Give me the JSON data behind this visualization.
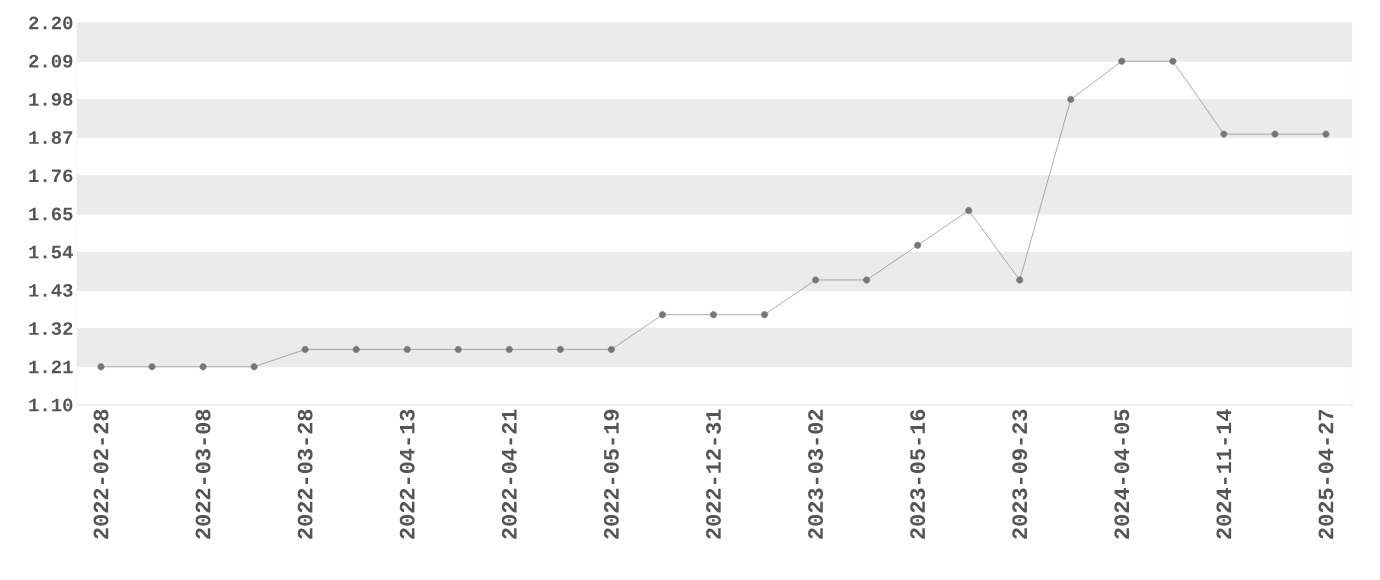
{
  "chart_data": {
    "type": "line",
    "categories": [
      "2022-02-28",
      null,
      "2022-03-08",
      null,
      "2022-03-28",
      null,
      "2022-04-13",
      null,
      "2022-04-21",
      null,
      "2022-05-19",
      null,
      "2022-12-31",
      null,
      "2023-03-02",
      null,
      "2023-05-16",
      null,
      "2023-09-23",
      null,
      "2024-04-05",
      null,
      "2024-11-14",
      null,
      "2025-04-27"
    ],
    "values": [
      1.21,
      1.21,
      1.21,
      1.21,
      1.26,
      1.26,
      1.26,
      1.26,
      1.26,
      1.26,
      1.26,
      1.36,
      1.36,
      1.36,
      1.46,
      1.46,
      1.56,
      1.66,
      1.46,
      1.98,
      2.09,
      2.09,
      1.88,
      1.88,
      1.88
    ],
    "color": "#777777",
    "marker": "circle",
    "line_style": "solid",
    "grid": "y",
    "ylim": [
      1.1,
      2.2
    ],
    "yticks": [
      {
        "value": 1.1,
        "label": "1.10"
      },
      1.21,
      1.32,
      1.43,
      1.54,
      1.65,
      1.76,
      1.87,
      1.98,
      2.09,
      {
        "value": 2.2,
        "label": "2.20"
      }
    ]
  }
}
